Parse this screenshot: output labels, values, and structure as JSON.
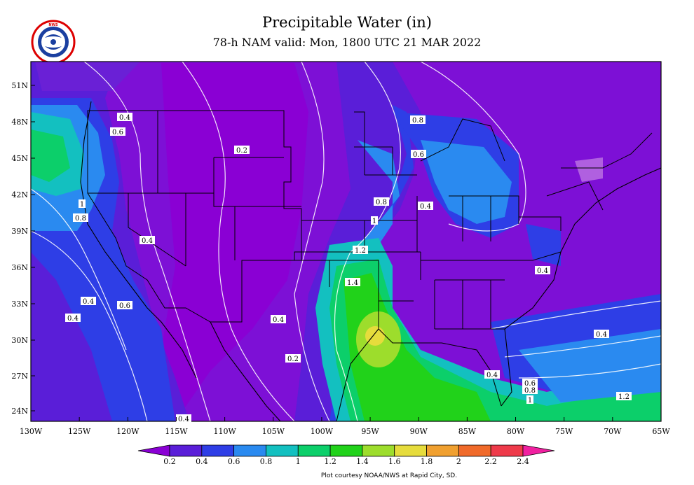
{
  "title": "Precipitable Water (in)",
  "subtitle": "78-h NAM valid: Mon, 1800 UTC 21 MAR 2022",
  "logo_text": "NATIONAL WEATHER SERVICE",
  "credit": "Plot courtesy NOAA/NWS at Rapid City, SD.",
  "lat_labels": [
    "51N",
    "48N",
    "45N",
    "42N",
    "39N",
    "36N",
    "33N",
    "30N",
    "27N",
    "24N"
  ],
  "lon_labels": [
    "130W",
    "125W",
    "120W",
    "115W",
    "110W",
    "105W",
    "100W",
    "95W",
    "90W",
    "85W",
    "80W",
    "75W",
    "70W",
    "65W"
  ],
  "colorbar": {
    "labels": [
      "0.2",
      "0.4",
      "0.6",
      "0.8",
      "1",
      "1.2",
      "1.4",
      "1.6",
      "1.8",
      "2",
      "2.2",
      "2.4"
    ],
    "colors": [
      "#8a00d4",
      "#5a1ed8",
      "#2e3ee6",
      "#2a8af0",
      "#13c0c0",
      "#0ccf6a",
      "#21d21a",
      "#9ddd2c",
      "#e6dc3c",
      "#f0a030",
      "#f06a2a",
      "#ee3a4a",
      "#f020a0"
    ]
  },
  "contour_labels": [
    {
      "text": "0.4"
    },
    {
      "text": "0.6"
    },
    {
      "text": "0.2"
    },
    {
      "text": "1"
    },
    {
      "text": "0.8"
    },
    {
      "text": "0.4"
    },
    {
      "text": "0.4"
    },
    {
      "text": "0.6"
    },
    {
      "text": "0.4"
    },
    {
      "text": "0.4"
    },
    {
      "text": "0.2"
    },
    {
      "text": "1.4"
    },
    {
      "text": "1.2"
    },
    {
      "text": "1"
    },
    {
      "text": "0.8"
    },
    {
      "text": "0.4"
    },
    {
      "text": "0.6"
    },
    {
      "text": "0.8"
    },
    {
      "text": "0.4"
    },
    {
      "text": "0.4"
    },
    {
      "text": "0.4"
    },
    {
      "text": "1.2"
    },
    {
      "text": "0.4"
    },
    {
      "text": "0.6"
    },
    {
      "text": "0.8"
    },
    {
      "text": "1"
    }
  ]
}
